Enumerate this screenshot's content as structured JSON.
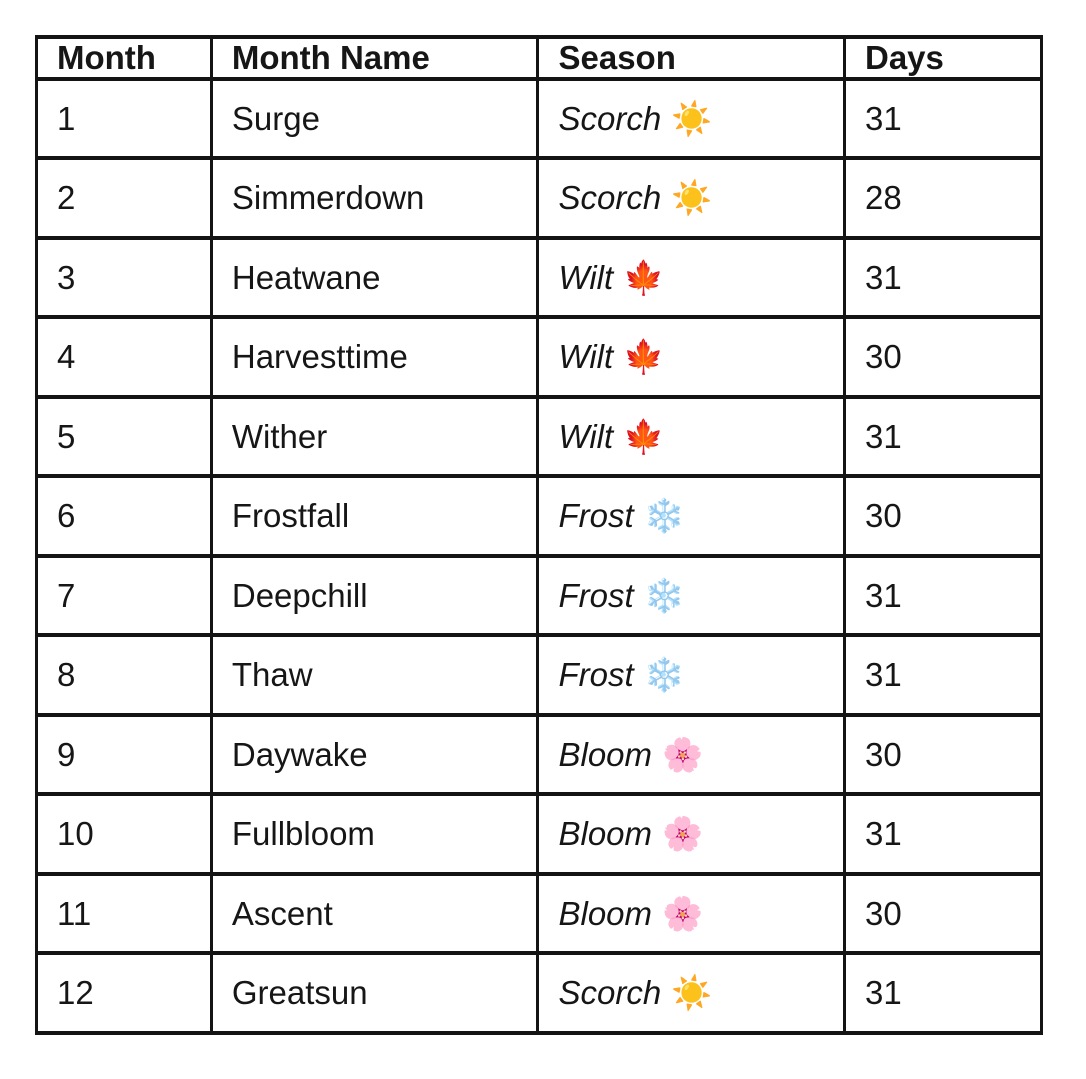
{
  "table": {
    "columns": [
      "Month",
      "Month Name",
      "Season",
      "Days"
    ],
    "rows": [
      {
        "month": "1",
        "name": "Surge",
        "season": "Scorch",
        "season_emoji": "☀️",
        "season_icon": "sun-icon",
        "season_color": "#f2a33c",
        "days": "31"
      },
      {
        "month": "2",
        "name": "Simmerdown",
        "season": "Scorch",
        "season_emoji": "☀️",
        "season_icon": "sun-icon",
        "season_color": "#f2a33c",
        "days": "28"
      },
      {
        "month": "3",
        "name": "Heatwane",
        "season": "Wilt",
        "season_emoji": "🍁",
        "season_icon": "maple-leaf-icon",
        "season_color": "#c8491d",
        "days": "31"
      },
      {
        "month": "4",
        "name": "Harvesttime",
        "season": "Wilt",
        "season_emoji": "🍁",
        "season_icon": "maple-leaf-icon",
        "season_color": "#c8491d",
        "days": "30"
      },
      {
        "month": "5",
        "name": "Wither",
        "season": "Wilt",
        "season_emoji": "🍁",
        "season_icon": "maple-leaf-icon",
        "season_color": "#c8491d",
        "days": "31"
      },
      {
        "month": "6",
        "name": "Frostfall",
        "season": "Frost",
        "season_emoji": "❄️",
        "season_icon": "snowflake-icon",
        "season_color": "#9ed0f0",
        "days": "30"
      },
      {
        "month": "7",
        "name": "Deepchill",
        "season": "Frost",
        "season_emoji": "❄️",
        "season_icon": "snowflake-icon",
        "season_color": "#9ed0f0",
        "days": "31"
      },
      {
        "month": "8",
        "name": "Thaw",
        "season": "Frost",
        "season_emoji": "❄️",
        "season_icon": "snowflake-icon",
        "season_color": "#9ed0f0",
        "days": "31"
      },
      {
        "month": "9",
        "name": "Daywake",
        "season": "Bloom",
        "season_emoji": "🌸",
        "season_icon": "blossom-icon",
        "season_color": "#f2a6c6",
        "days": "30"
      },
      {
        "month": "10",
        "name": "Fullbloom",
        "season": "Bloom",
        "season_emoji": "🌸",
        "season_icon": "blossom-icon",
        "season_color": "#f2a6c6",
        "days": "31"
      },
      {
        "month": "11",
        "name": "Ascent",
        "season": "Bloom",
        "season_emoji": "🌸",
        "season_icon": "blossom-icon",
        "season_color": "#f2a6c6",
        "days": "30"
      },
      {
        "month": "12",
        "name": "Greatsun",
        "season": "Scorch",
        "season_emoji": "☀️",
        "season_icon": "sun-icon",
        "season_color": "#f2a33c",
        "days": "31"
      }
    ]
  },
  "colors": {
    "border": "#141414",
    "text": "#161616",
    "background": "#ffffff"
  }
}
